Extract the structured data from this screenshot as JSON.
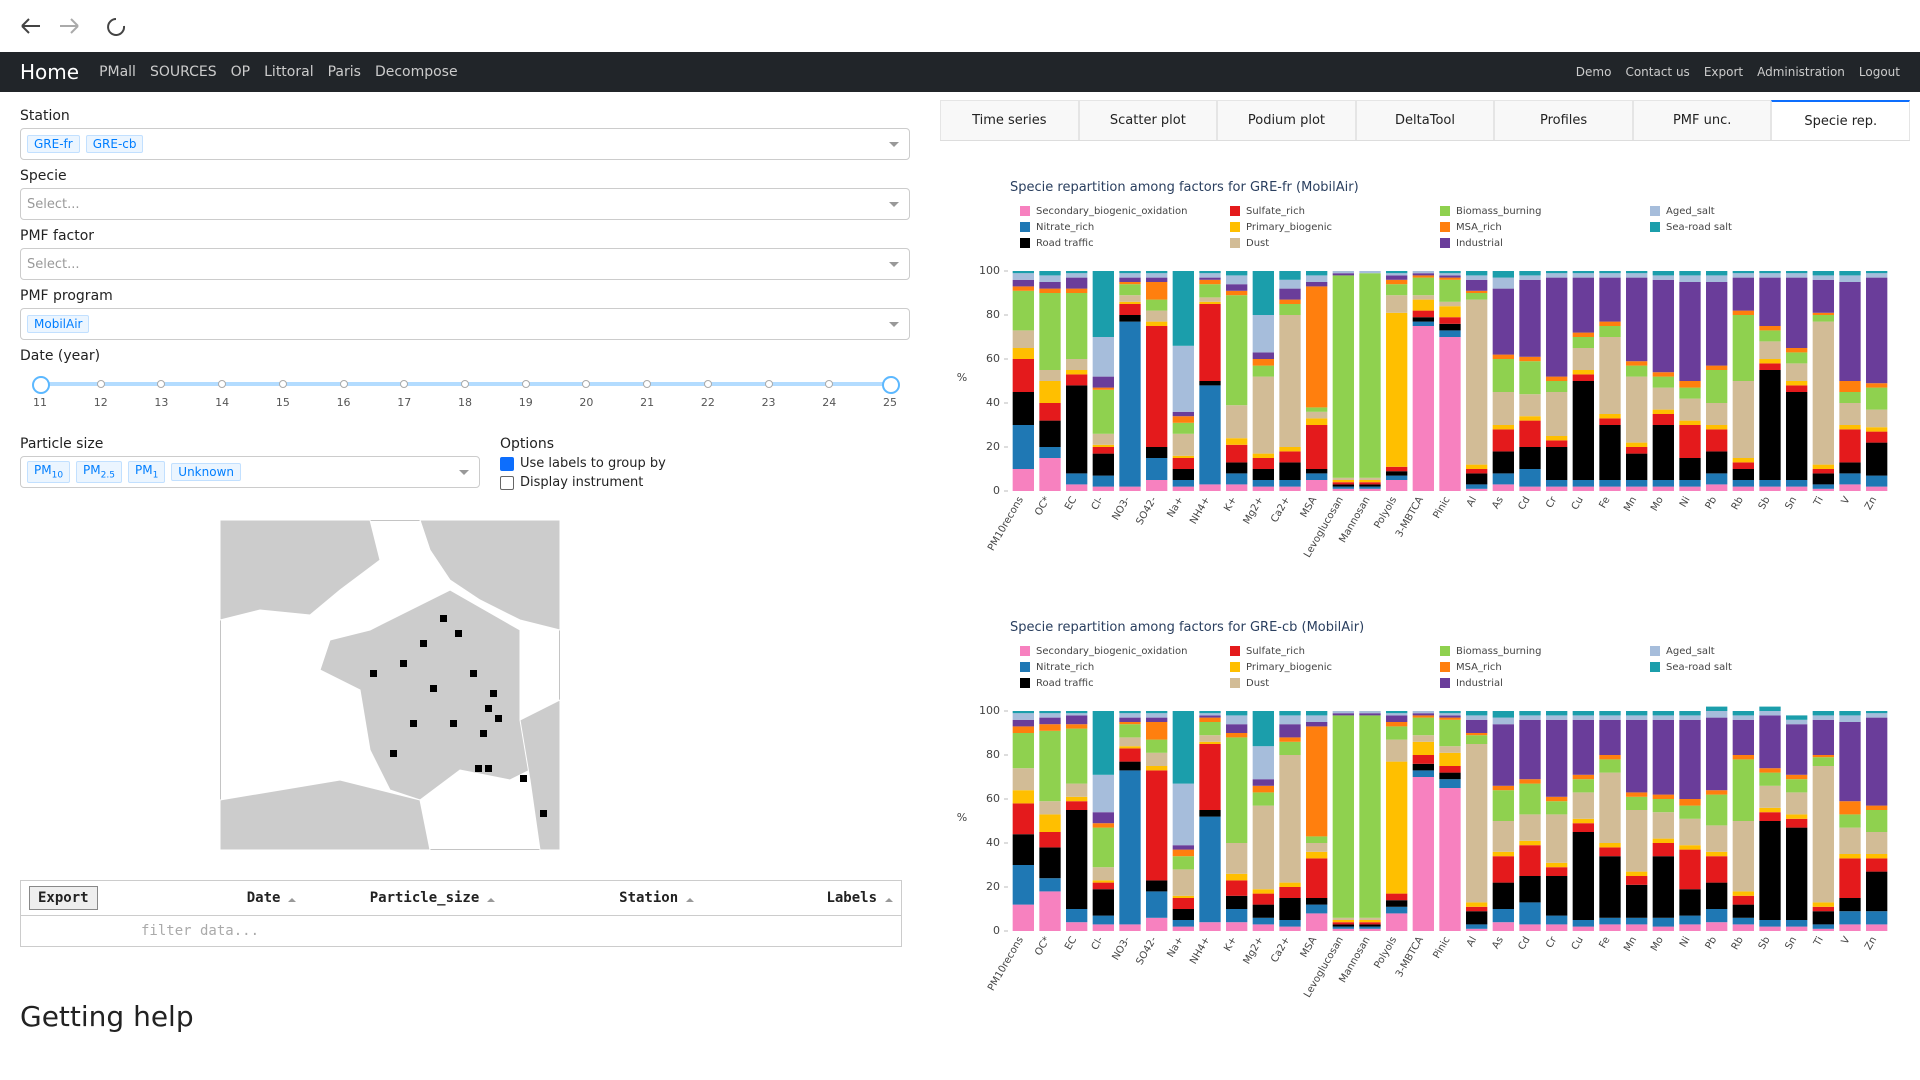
{
  "navbar": {
    "brand": "Home",
    "links": [
      "PMall",
      "SOURCES",
      "OP",
      "Littoral",
      "Paris",
      "Decompose"
    ],
    "right": [
      "Demo",
      "Contact us",
      "Export",
      "Administration",
      "Logout"
    ]
  },
  "filters": {
    "station": {
      "label": "Station",
      "chips": [
        "GRE-fr",
        "GRE-cb"
      ]
    },
    "specie": {
      "label": "Specie",
      "placeholder": "Select..."
    },
    "pmf_factor": {
      "label": "PMF factor",
      "placeholder": "Select..."
    },
    "pmf_program": {
      "label": "PMF program",
      "chips": [
        "MobilAir"
      ]
    },
    "date": {
      "label": "Date (year)",
      "min": 11,
      "max": 25,
      "value": [
        11,
        25
      ],
      "marks": [
        11,
        12,
        13,
        14,
        15,
        16,
        17,
        18,
        19,
        20,
        21,
        22,
        23,
        24,
        25
      ]
    },
    "particle_size": {
      "label": "Particle size",
      "chips": [
        {
          "text": "PM",
          "sub": "10"
        },
        {
          "text": "PM",
          "sub": "2.5"
        },
        {
          "text": "PM",
          "sub": "1"
        },
        {
          "text": "Unknown"
        }
      ]
    },
    "options": {
      "label": "Options",
      "items": [
        {
          "text": "Use labels to group by",
          "checked": true
        },
        {
          "text": "Display instrument",
          "checked": false
        }
      ]
    }
  },
  "tabs": {
    "items": [
      "Time series",
      "Scatter plot",
      "Podium plot",
      "DeltaTool",
      "Profiles",
      "PMF unc.",
      "Specie rep."
    ],
    "active": 6
  },
  "table": {
    "export": "Export",
    "columns": [
      "Date",
      "Particle_size",
      "Station",
      "Labels"
    ],
    "filter_placeholder": "filter data..."
  },
  "help": {
    "title": "Getting help"
  },
  "chart_data": [
    {
      "type": "bar",
      "stacked": true,
      "title": "Specie repartition among factors for GRE-fr (MobilAir)",
      "ylabel": "%",
      "categories": [
        "PM10recons",
        "OC*",
        "EC",
        "Cl-",
        "NO3-",
        "SO42-",
        "Na+",
        "NH4+",
        "K+",
        "Mg2+",
        "Ca2+",
        "MSA",
        "Levoglucosan",
        "Mannosan",
        "Polyols",
        "3-MBTCA",
        "Pinic",
        "Al",
        "As",
        "Cd",
        "Cr",
        "Cu",
        "Fe",
        "Mn",
        "Mo",
        "Ni",
        "Pb",
        "Rb",
        "Sb",
        "Sn",
        "Ti",
        "V",
        "Zn"
      ],
      "ylim": [
        0,
        100
      ],
      "yticks": [
        0,
        20,
        40,
        60,
        80,
        100
      ],
      "grid": false,
      "legend": "top",
      "series": [
        {
          "name": "Secondary_biogenic_oxidation",
          "color": "#f781bf",
          "values": [
            10,
            15,
            3,
            2,
            2,
            5,
            2,
            3,
            3,
            2,
            2,
            5,
            1,
            1,
            5,
            75,
            70,
            1,
            3,
            2,
            2,
            2,
            2,
            2,
            2,
            2,
            3,
            2,
            2,
            2,
            1,
            3,
            2
          ]
        },
        {
          "name": "Nitrate_rich",
          "color": "#1f78b4",
          "values": [
            20,
            5,
            5,
            5,
            75,
            10,
            3,
            45,
            5,
            3,
            3,
            3,
            1,
            1,
            2,
            2,
            3,
            2,
            5,
            8,
            3,
            3,
            3,
            3,
            3,
            3,
            5,
            3,
            3,
            3,
            2,
            5,
            5
          ]
        },
        {
          "name": "Road traffic",
          "color": "#000000",
          "values": [
            15,
            12,
            40,
            10,
            3,
            5,
            5,
            2,
            5,
            5,
            8,
            2,
            1,
            1,
            2,
            2,
            3,
            5,
            10,
            10,
            15,
            45,
            25,
            12,
            25,
            10,
            10,
            5,
            50,
            40,
            5,
            5,
            15
          ]
        },
        {
          "name": "Sulfate_rich",
          "color": "#e41a1c",
          "values": [
            15,
            8,
            5,
            3,
            5,
            55,
            5,
            35,
            8,
            5,
            5,
            20,
            1,
            1,
            2,
            3,
            3,
            2,
            10,
            12,
            3,
            3,
            3,
            3,
            5,
            15,
            10,
            3,
            3,
            3,
            2,
            15,
            5
          ]
        },
        {
          "name": "Primary_biogenic",
          "color": "#ffbf00",
          "values": [
            5,
            10,
            2,
            1,
            1,
            2,
            1,
            1,
            3,
            2,
            2,
            3,
            1,
            1,
            70,
            5,
            5,
            2,
            2,
            2,
            2,
            2,
            2,
            2,
            2,
            2,
            2,
            2,
            2,
            2,
            2,
            2,
            2
          ]
        },
        {
          "name": "Dust",
          "color": "#d2bc96",
          "values": [
            8,
            5,
            5,
            5,
            3,
            5,
            10,
            2,
            15,
            35,
            60,
            3,
            1,
            1,
            8,
            2,
            2,
            75,
            15,
            10,
            20,
            10,
            35,
            30,
            10,
            10,
            10,
            35,
            8,
            8,
            65,
            10,
            8
          ]
        },
        {
          "name": "Biomass_burning",
          "color": "#8fd14f",
          "values": [
            18,
            35,
            30,
            20,
            5,
            5,
            5,
            6,
            50,
            5,
            5,
            2,
            92,
            93,
            5,
            8,
            10,
            3,
            15,
            15,
            5,
            5,
            5,
            5,
            5,
            5,
            15,
            30,
            5,
            5,
            3,
            5,
            10
          ]
        },
        {
          "name": "MSA_rich",
          "color": "#ff7f0e",
          "values": [
            2,
            2,
            2,
            1,
            1,
            8,
            3,
            2,
            2,
            3,
            2,
            55,
            0,
            0,
            2,
            1,
            1,
            1,
            2,
            2,
            2,
            2,
            2,
            2,
            2,
            3,
            2,
            2,
            2,
            2,
            1,
            5,
            2
          ]
        },
        {
          "name": "Industrial",
          "color": "#6a3d9a",
          "values": [
            3,
            3,
            5,
            5,
            2,
            2,
            2,
            1,
            3,
            3,
            5,
            2,
            1,
            0,
            2,
            1,
            1,
            5,
            30,
            35,
            45,
            25,
            20,
            38,
            42,
            45,
            38,
            15,
            22,
            32,
            15,
            45,
            48
          ]
        },
        {
          "name": "Aged_salt",
          "color": "#a6bddb",
          "values": [
            3,
            3,
            2,
            18,
            2,
            2,
            30,
            2,
            4,
            17,
            4,
            3,
            1,
            1,
            1,
            1,
            1,
            2,
            5,
            2,
            2,
            2,
            2,
            2,
            2,
            3,
            3,
            2,
            2,
            2,
            2,
            3,
            2
          ]
        },
        {
          "name": "Sea-road salt",
          "color": "#1b9eab",
          "values": [
            1,
            2,
            1,
            30,
            1,
            1,
            34,
            1,
            2,
            20,
            4,
            2,
            0,
            0,
            1,
            0,
            1,
            2,
            3,
            2,
            1,
            1,
            1,
            1,
            2,
            2,
            2,
            1,
            1,
            1,
            2,
            2,
            1
          ]
        }
      ]
    },
    {
      "type": "bar",
      "stacked": true,
      "title": "Specie repartition among factors for GRE-cb (MobilAir)",
      "ylabel": "%",
      "categories": [
        "PM10recons",
        "OC*",
        "EC",
        "Cl-",
        "NO3-",
        "SO42-",
        "Na+",
        "NH4+",
        "K+",
        "Mg2+",
        "Ca2+",
        "MSA",
        "Levoglucosan",
        "Mannosan",
        "Polyols",
        "3-MBTCA",
        "Pinic",
        "Al",
        "As",
        "Cd",
        "Cr",
        "Cu",
        "Fe",
        "Mn",
        "Mo",
        "Ni",
        "Pb",
        "Rb",
        "Sb",
        "Sn",
        "Ti",
        "V",
        "Zn"
      ],
      "ylim": [
        0,
        100
      ],
      "yticks": [
        0,
        20,
        40,
        60,
        80,
        100
      ],
      "grid": false,
      "legend": "top",
      "series": [
        {
          "name": "Secondary_biogenic_oxidation",
          "color": "#f781bf",
          "values": [
            12,
            18,
            4,
            3,
            3,
            6,
            2,
            4,
            4,
            3,
            2,
            8,
            1,
            1,
            8,
            70,
            65,
            1,
            4,
            3,
            3,
            2,
            3,
            3,
            2,
            3,
            4,
            3,
            2,
            2,
            1,
            3,
            3
          ]
        },
        {
          "name": "Nitrate_rich",
          "color": "#1f78b4",
          "values": [
            18,
            6,
            6,
            4,
            70,
            12,
            3,
            48,
            6,
            3,
            3,
            4,
            1,
            1,
            3,
            3,
            4,
            2,
            6,
            10,
            4,
            3,
            3,
            3,
            4,
            4,
            6,
            3,
            3,
            3,
            2,
            6,
            6
          ]
        },
        {
          "name": "Road traffic",
          "color": "#000000",
          "values": [
            14,
            14,
            45,
            12,
            4,
            5,
            5,
            3,
            6,
            6,
            10,
            3,
            1,
            1,
            3,
            3,
            3,
            6,
            12,
            12,
            18,
            40,
            28,
            15,
            28,
            12,
            12,
            6,
            45,
            42,
            6,
            6,
            18
          ]
        },
        {
          "name": "Sulfate_rich",
          "color": "#e41a1c",
          "values": [
            14,
            7,
            4,
            3,
            6,
            50,
            5,
            30,
            7,
            5,
            5,
            18,
            1,
            1,
            3,
            4,
            3,
            2,
            12,
            14,
            4,
            4,
            4,
            4,
            6,
            18,
            12,
            4,
            4,
            4,
            2,
            18,
            6
          ]
        },
        {
          "name": "Primary_biogenic",
          "color": "#ffbf00",
          "values": [
            6,
            8,
            2,
            1,
            1,
            2,
            1,
            1,
            3,
            2,
            2,
            3,
            1,
            1,
            60,
            6,
            6,
            2,
            2,
            2,
            2,
            2,
            2,
            2,
            2,
            2,
            2,
            2,
            2,
            2,
            2,
            2,
            2
          ]
        },
        {
          "name": "Dust",
          "color": "#d2bc96",
          "values": [
            10,
            6,
            6,
            6,
            4,
            6,
            12,
            3,
            14,
            38,
            58,
            4,
            1,
            1,
            10,
            3,
            3,
            72,
            14,
            12,
            22,
            12,
            32,
            28,
            12,
            12,
            12,
            32,
            10,
            10,
            62,
            12,
            10
          ]
        },
        {
          "name": "Biomass_burning",
          "color": "#8fd14f",
          "values": [
            16,
            32,
            25,
            18,
            6,
            6,
            6,
            6,
            48,
            6,
            6,
            3,
            92,
            92,
            6,
            8,
            12,
            4,
            14,
            14,
            6,
            6,
            6,
            6,
            6,
            6,
            14,
            28,
            6,
            6,
            4,
            6,
            10
          ]
        },
        {
          "name": "MSA_rich",
          "color": "#ff7f0e",
          "values": [
            3,
            3,
            2,
            2,
            1,
            8,
            3,
            2,
            2,
            3,
            2,
            50,
            0,
            0,
            2,
            1,
            1,
            1,
            2,
            2,
            2,
            2,
            2,
            2,
            2,
            3,
            2,
            2,
            2,
            2,
            1,
            6,
            2
          ]
        },
        {
          "name": "Industrial",
          "color": "#6a3d9a",
          "values": [
            3,
            3,
            4,
            5,
            2,
            2,
            2,
            1,
            4,
            3,
            6,
            2,
            1,
            1,
            3,
            1,
            1,
            6,
            28,
            27,
            35,
            25,
            16,
            33,
            34,
            36,
            33,
            16,
            24,
            23,
            16,
            36,
            40
          ]
        },
        {
          "name": "Aged_salt",
          "color": "#a6bddb",
          "values": [
            3,
            2,
            1,
            17,
            2,
            2,
            28,
            1,
            4,
            15,
            4,
            3,
            1,
            1,
            1,
            1,
            1,
            2,
            3,
            2,
            2,
            2,
            2,
            2,
            2,
            2,
            3,
            2,
            2,
            2,
            2,
            3,
            2
          ]
        },
        {
          "name": "Sea-road salt",
          "color": "#1b9eab",
          "values": [
            1,
            1,
            1,
            29,
            1,
            1,
            33,
            1,
            2,
            16,
            2,
            2,
            0,
            0,
            1,
            0,
            1,
            2,
            3,
            2,
            2,
            2,
            2,
            2,
            2,
            2,
            2,
            2,
            2,
            2,
            2,
            2,
            1
          ]
        }
      ]
    }
  ]
}
